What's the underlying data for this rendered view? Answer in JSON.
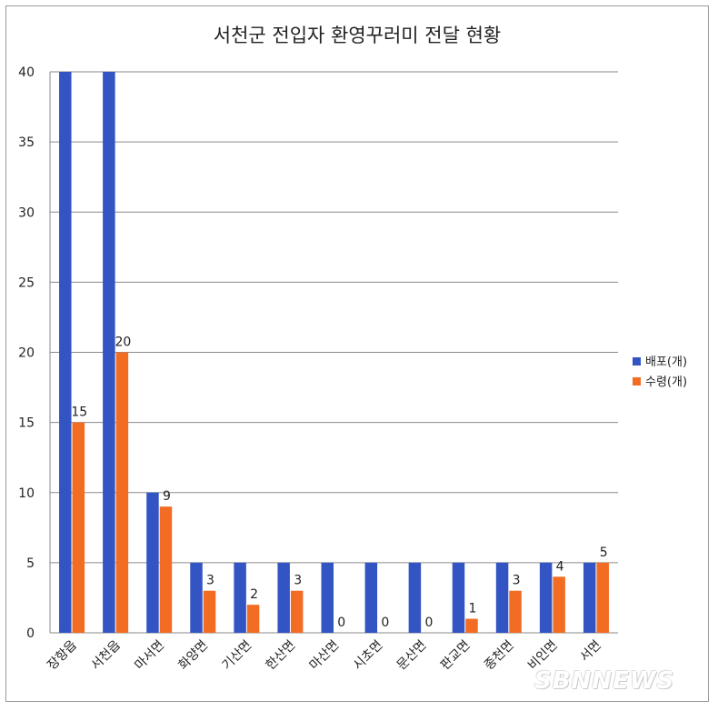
{
  "chart_data": {
    "type": "bar",
    "title": "서천군 전입자 환영꾸러미 전달 현황",
    "xlabel": "",
    "ylabel": "",
    "ylim": [
      0,
      40
    ],
    "yticks": [
      0,
      5,
      10,
      15,
      20,
      25,
      30,
      35,
      40
    ],
    "grid": true,
    "legend_position": "right",
    "categories": [
      "장항읍",
      "서천읍",
      "마서면",
      "화양면",
      "기산면",
      "한산면",
      "마산면",
      "시초면",
      "문산면",
      "판교면",
      "종천면",
      "비인면",
      "서면"
    ],
    "series": [
      {
        "name": "배포(개)",
        "color": "#3355c4",
        "values": [
          40,
          40,
          10,
          5,
          5,
          5,
          5,
          5,
          5,
          5,
          5,
          5,
          5
        ],
        "show_labels": false
      },
      {
        "name": "수령(개)",
        "color": "#f26c24",
        "values": [
          15,
          20,
          9,
          3,
          2,
          3,
          0,
          0,
          0,
          1,
          3,
          4,
          5
        ],
        "show_labels": true
      }
    ]
  },
  "watermark": "SBNNEWS"
}
